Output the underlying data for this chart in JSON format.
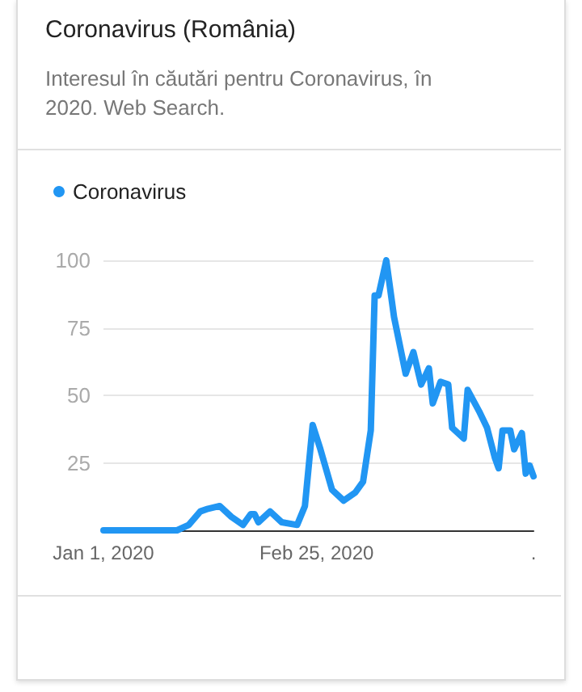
{
  "chart_data": {
    "type": "line",
    "title": "Coronavirus (România)",
    "subtitle": "Interesul în căutări pentru Coronavirus, în 2020. Web Search.",
    "x": [
      "2020-01-01",
      "2020-01-20",
      "2020-01-23",
      "2020-01-26",
      "2020-01-28",
      "2020-01-31",
      "2020-02-03",
      "2020-02-06",
      "2020-02-08",
      "2020-02-09",
      "2020-02-10",
      "2020-02-13",
      "2020-02-16",
      "2020-02-20",
      "2020-02-22",
      "2020-02-24",
      "2020-02-26",
      "2020-02-29",
      "2020-03-03",
      "2020-03-06",
      "2020-03-08",
      "2020-03-10",
      "2020-03-11",
      "2020-03-12",
      "2020-03-14",
      "2020-03-16",
      "2020-03-18",
      "2020-03-19",
      "2020-03-21",
      "2020-03-23",
      "2020-03-25",
      "2020-03-26",
      "2020-03-28",
      "2020-03-30",
      "2020-03-31",
      "2020-04-03",
      "2020-04-04",
      "2020-04-07",
      "2020-04-09",
      "2020-04-11",
      "2020-04-12",
      "2020-04-13",
      "2020-04-15",
      "2020-04-16",
      "2020-04-18",
      "2020-04-19",
      "2020-04-20",
      "2020-04-21"
    ],
    "series": [
      {
        "name": "Coronavirus",
        "color": "#2196f3",
        "values": [
          0,
          0,
          2,
          7,
          8,
          9,
          5,
          2,
          6,
          6,
          3,
          7,
          3,
          2,
          9,
          39,
          30,
          15,
          11,
          14,
          18,
          37,
          87,
          87,
          100,
          79,
          65,
          58,
          66,
          54,
          60,
          47,
          55,
          54,
          38,
          34,
          52,
          44,
          38,
          27,
          23,
          37,
          37,
          30,
          36,
          21,
          24,
          20
        ]
      }
    ],
    "xlim": [
      "2020-01-01",
      "2020-04-21"
    ],
    "xticks": [
      {
        "value": "2020-01-01",
        "label": "Jan 1, 2020"
      },
      {
        "value": "2020-02-25",
        "label": "Feb 25, 2020"
      },
      {
        "value": "2020-04-21",
        "label": "."
      }
    ],
    "ylim": [
      0,
      100
    ],
    "yticks": [
      25,
      50,
      75,
      100
    ],
    "grid": "y",
    "legend": "top left",
    "marker": "none",
    "line_style": "solid"
  }
}
